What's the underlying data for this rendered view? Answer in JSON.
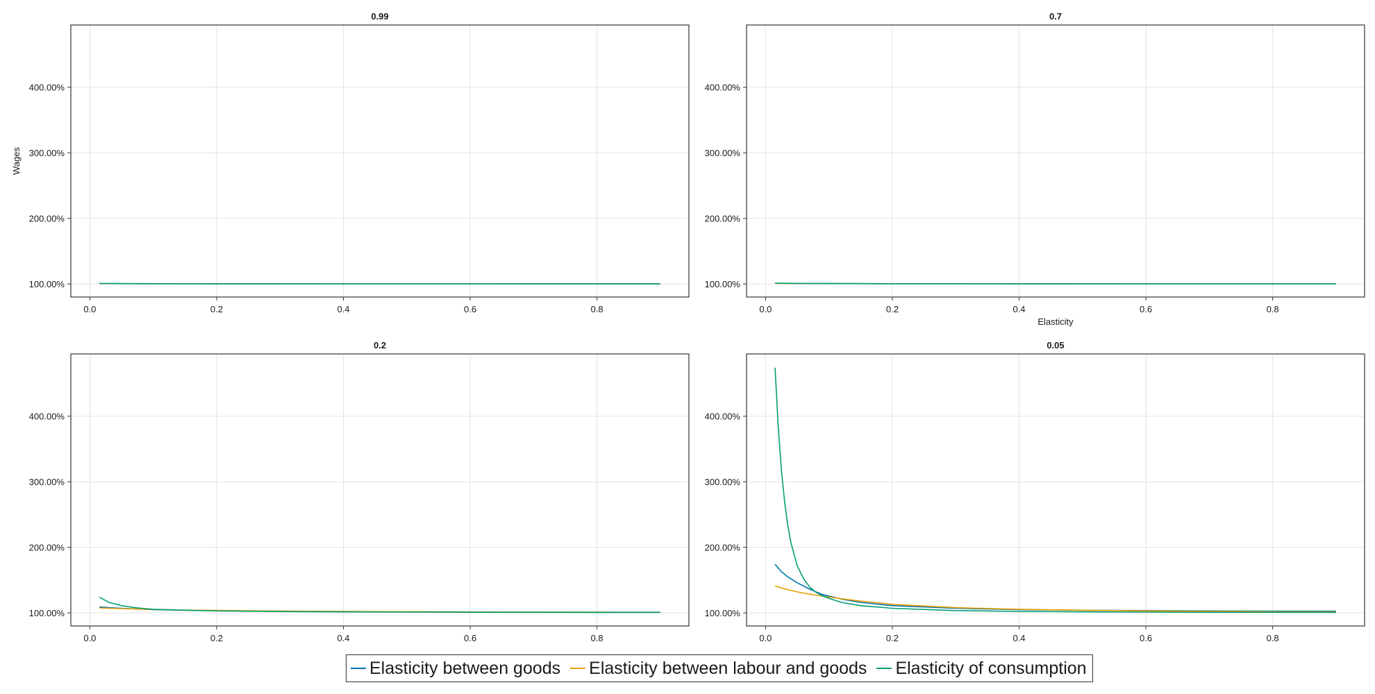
{
  "chart_data": {
    "type": "line",
    "ylabel": "Wages",
    "xlabel": "Elasticity",
    "x_ticks": [
      "0.0",
      "0.2",
      "0.4",
      "0.6",
      "0.8"
    ],
    "y_ticks": [
      "100.00%",
      "200.00%",
      "300.00%",
      "400.00%"
    ],
    "xlim": [
      -0.03,
      0.945
    ],
    "ylim": [
      80,
      495
    ],
    "grid": true,
    "legend_position": "bottom-center",
    "series_styles": [
      {
        "name": "Elasticity between goods",
        "color": "#0072B2"
      },
      {
        "name": "Elasticity between labour and goods",
        "color": "#E69F00"
      },
      {
        "name": "Elasticity of consumption",
        "color": "#009E73"
      }
    ],
    "panels": [
      {
        "title": "0.99",
        "series": [
          {
            "name": "Elasticity between goods",
            "x": [
              0.015,
              0.05,
              0.1,
              0.2,
              0.4,
              0.6,
              0.9
            ],
            "y": [
              100.5,
              100.4,
              100.3,
              100.2,
              100.1,
              100.1,
              100.0
            ]
          },
          {
            "name": "Elasticity between labour and goods",
            "x": [
              0.015,
              0.05,
              0.1,
              0.2,
              0.4,
              0.6,
              0.9
            ],
            "y": [
              100.4,
              100.3,
              100.3,
              100.2,
              100.1,
              100.1,
              100.0
            ]
          },
          {
            "name": "Elasticity of consumption",
            "x": [
              0.015,
              0.05,
              0.1,
              0.2,
              0.4,
              0.6,
              0.9
            ],
            "y": [
              100.6,
              100.4,
              100.3,
              100.2,
              100.1,
              100.1,
              100.0
            ]
          }
        ]
      },
      {
        "title": "0.7",
        "series": [
          {
            "name": "Elasticity between goods",
            "x": [
              0.015,
              0.05,
              0.1,
              0.2,
              0.4,
              0.6,
              0.9
            ],
            "y": [
              101.0,
              100.7,
              100.5,
              100.3,
              100.2,
              100.1,
              100.1
            ]
          },
          {
            "name": "Elasticity between labour and goods",
            "x": [
              0.015,
              0.05,
              0.1,
              0.2,
              0.4,
              0.6,
              0.9
            ],
            "y": [
              100.8,
              100.6,
              100.5,
              100.3,
              100.2,
              100.1,
              100.1
            ]
          },
          {
            "name": "Elasticity of consumption",
            "x": [
              0.015,
              0.05,
              0.1,
              0.2,
              0.4,
              0.6,
              0.9
            ],
            "y": [
              101.2,
              100.8,
              100.5,
              100.3,
              100.2,
              100.1,
              100.1
            ]
          }
        ]
      },
      {
        "title": "0.2",
        "series": [
          {
            "name": "Elasticity between goods",
            "x": [
              0.015,
              0.03,
              0.05,
              0.075,
              0.1,
              0.15,
              0.2,
              0.3,
              0.4,
              0.5,
              0.6,
              0.7,
              0.8,
              0.9
            ],
            "y": [
              109.0,
              108.0,
              107.0,
              106.0,
              105.0,
              104.0,
              103.5,
              102.5,
              102.0,
              101.6,
              101.4,
              101.2,
              101.1,
              101.0
            ]
          },
          {
            "name": "Elasticity between labour and goods",
            "x": [
              0.015,
              0.03,
              0.05,
              0.075,
              0.1,
              0.15,
              0.2,
              0.3,
              0.4,
              0.5,
              0.6,
              0.7,
              0.8,
              0.9
            ],
            "y": [
              107.5,
              107.0,
              106.5,
              105.8,
              105.2,
              104.3,
              103.7,
              102.8,
              102.2,
              101.8,
              101.5,
              101.3,
              101.1,
              101.0
            ]
          },
          {
            "name": "Elasticity of consumption",
            "x": [
              0.015,
              0.03,
              0.05,
              0.075,
              0.1,
              0.15,
              0.2,
              0.3,
              0.4,
              0.5,
              0.6,
              0.7,
              0.8,
              0.9
            ],
            "y": [
              124.0,
              116.0,
              111.0,
              107.5,
              105.5,
              104.0,
              103.0,
              102.0,
              101.5,
              101.2,
              101.0,
              100.9,
              100.8,
              100.7
            ]
          }
        ]
      },
      {
        "title": "0.05",
        "series": [
          {
            "name": "Elasticity between goods",
            "x": [
              0.015,
              0.025,
              0.035,
              0.05,
              0.07,
              0.09,
              0.12,
              0.15,
              0.2,
              0.3,
              0.4,
              0.5,
              0.6,
              0.7,
              0.8,
              0.9
            ],
            "y": [
              174.0,
              163.0,
              155.0,
              146.0,
              136.0,
              128.0,
              121.0,
              116.0,
              111.0,
              107.0,
              105.0,
              104.0,
              103.5,
              103.0,
              102.7,
              102.5
            ]
          },
          {
            "name": "Elasticity between labour and goods",
            "x": [
              0.015,
              0.025,
              0.035,
              0.05,
              0.07,
              0.09,
              0.12,
              0.15,
              0.2,
              0.3,
              0.4,
              0.5,
              0.6,
              0.7,
              0.8,
              0.9
            ],
            "y": [
              141.0,
              138.0,
              135.5,
              132.0,
              128.5,
              125.5,
              121.5,
              118.0,
              113.0,
              108.0,
              105.5,
              104.0,
              103.0,
              102.3,
              101.8,
              101.5
            ]
          },
          {
            "name": "Elasticity of consumption",
            "x": [
              0.015,
              0.02,
              0.025,
              0.03,
              0.035,
              0.04,
              0.05,
              0.06,
              0.07,
              0.08,
              0.09,
              0.1,
              0.12,
              0.15,
              0.2,
              0.3,
              0.4,
              0.5,
              0.6,
              0.7,
              0.8,
              0.9
            ],
            "y": [
              474.0,
              385.0,
              318.0,
              270.0,
              234.0,
              207.0,
              172.0,
              152.0,
              139.0,
              131.0,
              126.0,
              122.0,
              116.0,
              111.0,
              107.0,
              103.5,
              102.2,
              101.6,
              101.2,
              101.0,
              100.9,
              100.8
            ]
          }
        ]
      }
    ]
  }
}
